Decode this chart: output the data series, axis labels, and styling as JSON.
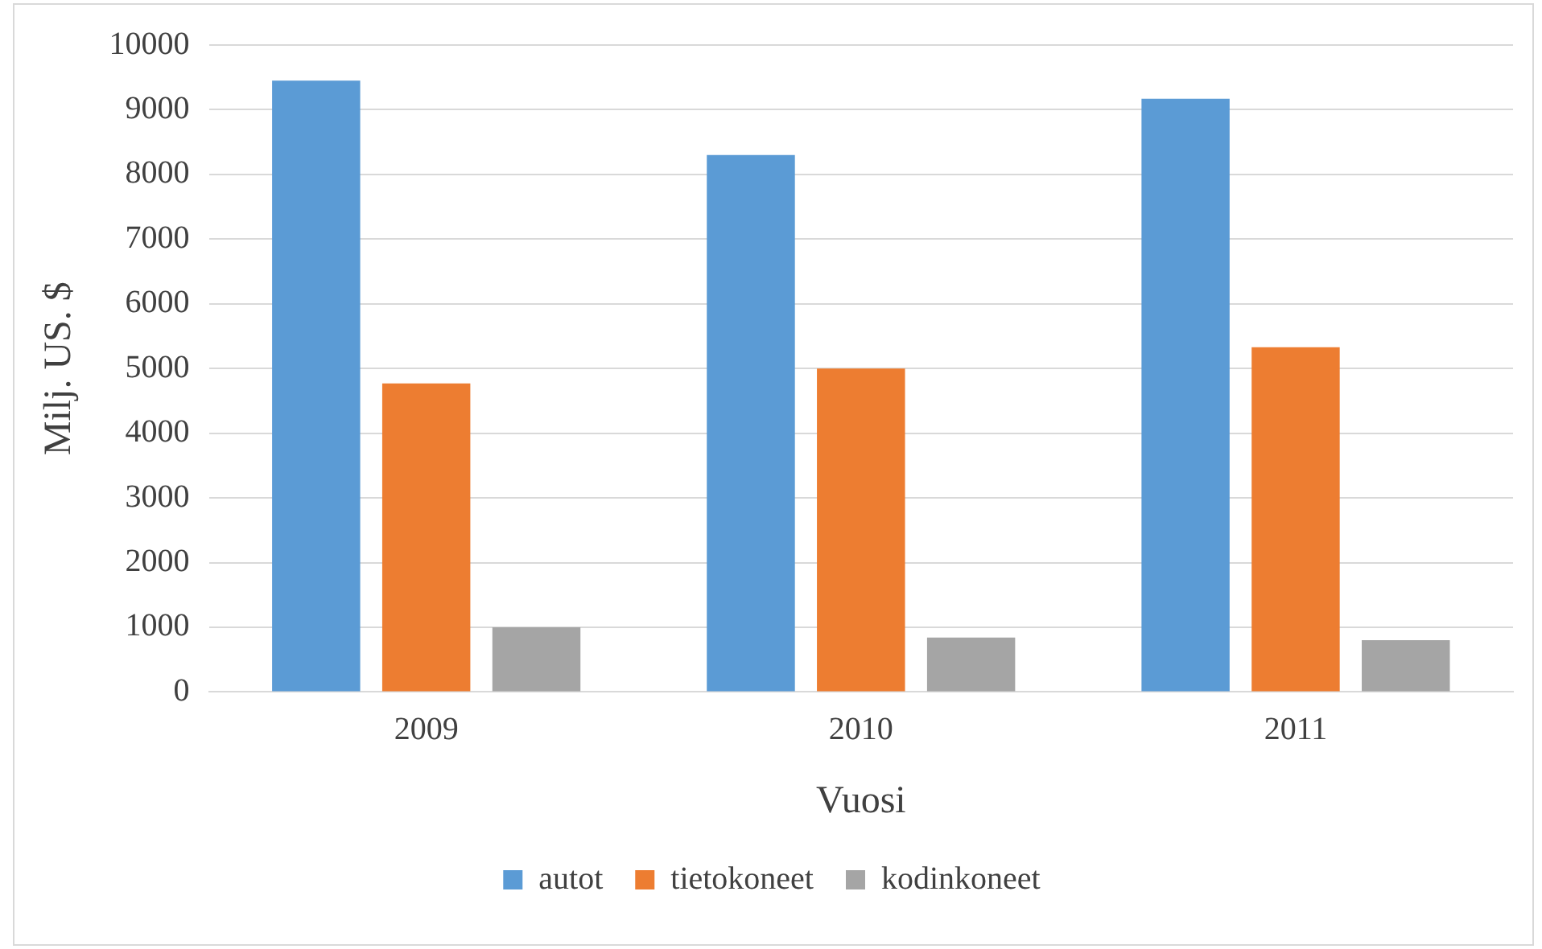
{
  "chart_data": {
    "type": "bar",
    "xlabel": "Vuosi",
    "ylabel": "Milj. US. $",
    "categories": [
      "2009",
      "2010",
      "2011"
    ],
    "series": [
      {
        "name": "autot",
        "color": "#5b9bd5",
        "values": [
          9450,
          8300,
          9170
        ]
      },
      {
        "name": "tietokoneet",
        "color": "#ed7d31",
        "values": [
          4770,
          5000,
          5330
        ]
      },
      {
        "name": "kodinkoneet",
        "color": "#a5a5a5",
        "values": [
          1000,
          840,
          800
        ]
      }
    ],
    "ylim": [
      0,
      10000
    ],
    "yticks": [
      0,
      1000,
      2000,
      3000,
      4000,
      5000,
      6000,
      7000,
      8000,
      9000,
      10000
    ],
    "grid": "y",
    "legend": "bottom"
  }
}
